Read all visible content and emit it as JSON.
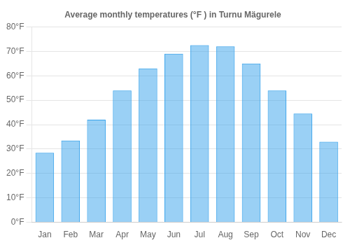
{
  "chart_data": {
    "type": "bar",
    "title": "Average monthly temperatures (°F ) in Turnu Mägurele",
    "categories": [
      "Jan",
      "Feb",
      "Mar",
      "Apr",
      "May",
      "Jun",
      "Jul",
      "Aug",
      "Sep",
      "Oct",
      "Nov",
      "Dec"
    ],
    "values": [
      28.5,
      33.5,
      42,
      54,
      63,
      69,
      72.5,
      72,
      65,
      54,
      44.5,
      33
    ],
    "ylim": [
      0,
      80
    ],
    "yticks": [
      {
        "value": 0,
        "label": "0°F"
      },
      {
        "value": 10,
        "label": "10°F"
      },
      {
        "value": 20,
        "label": "20°F"
      },
      {
        "value": 30,
        "label": "30°F"
      },
      {
        "value": 40,
        "label": "40°F"
      },
      {
        "value": 50,
        "label": "50°F"
      },
      {
        "value": 60,
        "label": "60°F"
      },
      {
        "value": 70,
        "label": "70°F"
      },
      {
        "value": 80,
        "label": "80°F"
      }
    ],
    "grid": true
  }
}
